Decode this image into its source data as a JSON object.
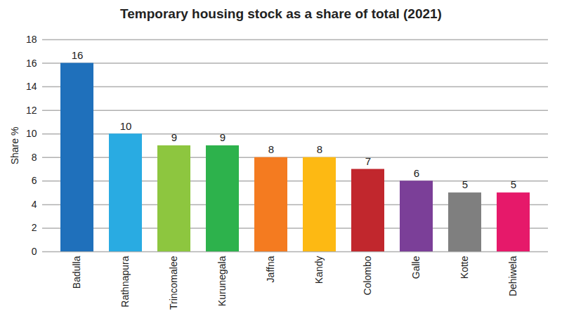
{
  "chart_data": {
    "type": "bar",
    "title": "Temporary housing stock as a share of total (2021)",
    "y_label": "Share %",
    "categories": [
      "Badulla",
      "Rathnapura",
      "Trincomalee",
      "Kurunegala",
      "Jaffna",
      "Kandy",
      "Colombo",
      "Galle",
      "Kotte",
      "Dehiwela"
    ],
    "values": [
      16,
      10,
      9,
      9,
      8,
      8,
      7,
      6,
      5,
      5
    ],
    "colors": [
      "#1f70bb",
      "#29abe2",
      "#8dc63f",
      "#2db24c",
      "#f47b20",
      "#fdb913",
      "#c1272d",
      "#7b3f98",
      "#7f7f7f",
      "#e6196a"
    ],
    "ylim": [
      0,
      18
    ],
    "yticks": [
      0,
      2,
      4,
      6,
      8,
      10,
      12,
      14,
      16,
      18
    ],
    "grid": true,
    "data_labels": true
  }
}
